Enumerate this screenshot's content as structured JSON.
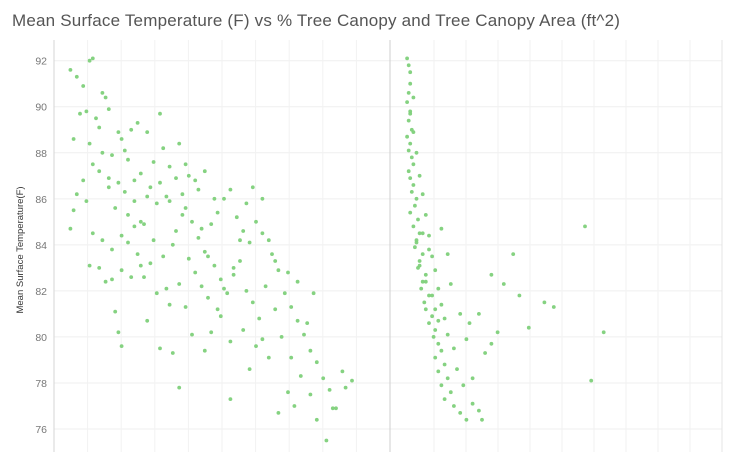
{
  "chart_data": {
    "type": "scatter",
    "title": "Mean Surface Temperature (F) vs % Tree Canopy and Tree Canopy Area (ft^2)",
    "ylabel": "Mean Surface Temperature(F)",
    "y_ticks": [
      "76",
      "78",
      "80",
      "82",
      "84",
      "86",
      "88",
      "90",
      "92"
    ],
    "ylim": [
      75.0,
      92.9
    ],
    "grid": true,
    "point_color": "#7ed07a",
    "panels": [
      {
        "name": "",
        "xlabel": "",
        "xlim": [
          0,
          100
        ],
        "points": [
          [
            2,
            91.6
          ],
          [
            4,
            91.3
          ],
          [
            6,
            90.9
          ],
          [
            8,
            92.0
          ],
          [
            9,
            92.1
          ],
          [
            12,
            90.6
          ],
          [
            13,
            90.4
          ],
          [
            7,
            89.8
          ],
          [
            10,
            89.5
          ],
          [
            11,
            89.1
          ],
          [
            14,
            89.9
          ],
          [
            5,
            89.7
          ],
          [
            3,
            88.6
          ],
          [
            8,
            88.4
          ],
          [
            12,
            88.0
          ],
          [
            15,
            87.9
          ],
          [
            18,
            88.6
          ],
          [
            21,
            89.0
          ],
          [
            23,
            89.3
          ],
          [
            26,
            88.9
          ],
          [
            30,
            89.7
          ],
          [
            9,
            87.5
          ],
          [
            11,
            87.2
          ],
          [
            14,
            86.9
          ],
          [
            17,
            86.7
          ],
          [
            6,
            86.8
          ],
          [
            4,
            86.2
          ],
          [
            7,
            85.9
          ],
          [
            3,
            85.5
          ],
          [
            2,
            84.7
          ],
          [
            9,
            84.5
          ],
          [
            12,
            84.2
          ],
          [
            15,
            83.8
          ],
          [
            11,
            83.0
          ],
          [
            8,
            83.1
          ],
          [
            13,
            82.4
          ],
          [
            16,
            81.1
          ],
          [
            17,
            80.2
          ],
          [
            18,
            79.6
          ],
          [
            20,
            85.3
          ],
          [
            22,
            84.8
          ],
          [
            19,
            86.3
          ],
          [
            24,
            87.1
          ],
          [
            27,
            86.5
          ],
          [
            29,
            85.8
          ],
          [
            31,
            88.2
          ],
          [
            33,
            87.4
          ],
          [
            35,
            86.9
          ],
          [
            37,
            86.2
          ],
          [
            28,
            84.2
          ],
          [
            31,
            83.5
          ],
          [
            34,
            84.0
          ],
          [
            25,
            82.6
          ],
          [
            29,
            81.9
          ],
          [
            33,
            81.4
          ],
          [
            26,
            80.7
          ],
          [
            30,
            79.5
          ],
          [
            34,
            79.3
          ],
          [
            36,
            77.8
          ],
          [
            38,
            85.6
          ],
          [
            40,
            85.0
          ],
          [
            42,
            84.3
          ],
          [
            44,
            83.7
          ],
          [
            46,
            84.9
          ],
          [
            48,
            85.4
          ],
          [
            50,
            86.0
          ],
          [
            52,
            86.4
          ],
          [
            54,
            85.2
          ],
          [
            56,
            84.6
          ],
          [
            58,
            84.1
          ],
          [
            60,
            85.0
          ],
          [
            62,
            84.5
          ],
          [
            41,
            82.8
          ],
          [
            43,
            82.2
          ],
          [
            45,
            81.7
          ],
          [
            47,
            83.1
          ],
          [
            49,
            82.5
          ],
          [
            51,
            81.9
          ],
          [
            53,
            82.7
          ],
          [
            55,
            83.3
          ],
          [
            57,
            82.0
          ],
          [
            59,
            81.5
          ],
          [
            61,
            80.8
          ],
          [
            63,
            82.2
          ],
          [
            65,
            83.6
          ],
          [
            67,
            82.9
          ],
          [
            69,
            81.9
          ],
          [
            71,
            81.3
          ],
          [
            73,
            80.7
          ],
          [
            75,
            80.1
          ],
          [
            77,
            79.4
          ],
          [
            79,
            78.9
          ],
          [
            81,
            78.2
          ],
          [
            83,
            77.7
          ],
          [
            85,
            76.9
          ],
          [
            72,
            77.0
          ],
          [
            70,
            77.6
          ],
          [
            67,
            76.7
          ],
          [
            64,
            79.1
          ],
          [
            60,
            79.6
          ],
          [
            56,
            80.3
          ],
          [
            52,
            79.8
          ],
          [
            49,
            80.9
          ],
          [
            46,
            80.2
          ],
          [
            44,
            79.4
          ],
          [
            38,
            81.3
          ],
          [
            36,
            82.3
          ],
          [
            39,
            83.4
          ],
          [
            42,
            86.4
          ],
          [
            44,
            87.2
          ],
          [
            47,
            86.0
          ],
          [
            36,
            88.4
          ],
          [
            38,
            87.5
          ],
          [
            32,
            86.1
          ],
          [
            22,
            85.9
          ],
          [
            25,
            84.9
          ],
          [
            23,
            83.6
          ],
          [
            21,
            82.6
          ],
          [
            18,
            84.4
          ],
          [
            16,
            85.6
          ],
          [
            14,
            86.5
          ],
          [
            27,
            83.2
          ],
          [
            32,
            82.1
          ],
          [
            40,
            80.1
          ],
          [
            52,
            77.3
          ],
          [
            58,
            78.6
          ],
          [
            62,
            79.9
          ],
          [
            66,
            81.2
          ],
          [
            68,
            80.0
          ],
          [
            71,
            79.1
          ],
          [
            74,
            78.3
          ],
          [
            77,
            77.5
          ],
          [
            79,
            76.4
          ],
          [
            82,
            75.5
          ],
          [
            84,
            76.9
          ],
          [
            88,
            77.8
          ],
          [
            90,
            78.1
          ],
          [
            87,
            78.5
          ],
          [
            76,
            80.6
          ],
          [
            78,
            81.9
          ],
          [
            73,
            82.4
          ],
          [
            70,
            82.8
          ],
          [
            66,
            83.3
          ],
          [
            64,
            84.2
          ],
          [
            62,
            86.0
          ],
          [
            59,
            86.5
          ],
          [
            57,
            85.8
          ],
          [
            55,
            84.2
          ],
          [
            53,
            83.0
          ],
          [
            50,
            82.1
          ],
          [
            48,
            81.2
          ],
          [
            45,
            83.5
          ],
          [
            43,
            84.7
          ],
          [
            41,
            86.8
          ],
          [
            39,
            87.0
          ],
          [
            37,
            85.3
          ],
          [
            35,
            84.6
          ],
          [
            33,
            85.9
          ],
          [
            30,
            86.7
          ],
          [
            28,
            87.6
          ],
          [
            26,
            86.1
          ],
          [
            24,
            85.0
          ],
          [
            22,
            86.8
          ],
          [
            20,
            87.7
          ],
          [
            19,
            88.1
          ],
          [
            17,
            88.9
          ],
          [
            24,
            83.1
          ],
          [
            20,
            84.1
          ],
          [
            18,
            82.9
          ],
          [
            15,
            82.5
          ]
        ]
      },
      {
        "name": "",
        "xlabel": "",
        "xlim": [
          0,
          100
        ],
        "points": [
          [
            1,
            92.1
          ],
          [
            1.5,
            91.8
          ],
          [
            2,
            91.5
          ],
          [
            2,
            91.0
          ],
          [
            1.5,
            90.6
          ],
          [
            1,
            90.2
          ],
          [
            2,
            89.8
          ],
          [
            1.5,
            89.4
          ],
          [
            2.5,
            89.0
          ],
          [
            1,
            88.7
          ],
          [
            2,
            88.4
          ],
          [
            1.5,
            88.1
          ],
          [
            2.5,
            87.8
          ],
          [
            3,
            87.5
          ],
          [
            1.5,
            87.2
          ],
          [
            2,
            86.9
          ],
          [
            3,
            86.6
          ],
          [
            2.5,
            86.3
          ],
          [
            4,
            86.0
          ],
          [
            3.5,
            85.7
          ],
          [
            2,
            85.4
          ],
          [
            4.5,
            85.1
          ],
          [
            3,
            84.8
          ],
          [
            5,
            84.5
          ],
          [
            4,
            84.2
          ],
          [
            3.5,
            83.9
          ],
          [
            6,
            83.6
          ],
          [
            5,
            83.3
          ],
          [
            4.5,
            83.0
          ],
          [
            7,
            82.7
          ],
          [
            6,
            82.4
          ],
          [
            5.5,
            82.1
          ],
          [
            8,
            81.8
          ],
          [
            6.5,
            81.5
          ],
          [
            7,
            81.2
          ],
          [
            9,
            80.9
          ],
          [
            8,
            80.6
          ],
          [
            10,
            80.3
          ],
          [
            9.5,
            80.0
          ],
          [
            11,
            79.7
          ],
          [
            12,
            79.4
          ],
          [
            10,
            79.1
          ],
          [
            13,
            78.8
          ],
          [
            11,
            78.5
          ],
          [
            14,
            78.2
          ],
          [
            12,
            77.9
          ],
          [
            15,
            77.6
          ],
          [
            13,
            77.3
          ],
          [
            16,
            77.0
          ],
          [
            18,
            76.7
          ],
          [
            20,
            76.4
          ],
          [
            8,
            84.4
          ],
          [
            9,
            83.5
          ],
          [
            10,
            82.9
          ],
          [
            11,
            82.1
          ],
          [
            12,
            81.4
          ],
          [
            13,
            80.8
          ],
          [
            7,
            85.3
          ],
          [
            6,
            86.2
          ],
          [
            5,
            87.0
          ],
          [
            4,
            88.0
          ],
          [
            3,
            88.9
          ],
          [
            2,
            89.7
          ],
          [
            3,
            90.4
          ],
          [
            14,
            80.1
          ],
          [
            16,
            79.5
          ],
          [
            17,
            78.6
          ],
          [
            19,
            77.9
          ],
          [
            22,
            77.1
          ],
          [
            24,
            76.8
          ],
          [
            25,
            76.4
          ],
          [
            22,
            78.2
          ],
          [
            26,
            79.3
          ],
          [
            28,
            79.7
          ],
          [
            30,
            80.2
          ],
          [
            24,
            81.0
          ],
          [
            28,
            82.7
          ],
          [
            32,
            82.3
          ],
          [
            35,
            83.6
          ],
          [
            40,
            80.4
          ],
          [
            45,
            81.5
          ],
          [
            48,
            81.3
          ],
          [
            37,
            81.8
          ],
          [
            58,
            84.8
          ],
          [
            60,
            78.1
          ],
          [
            64,
            80.2
          ],
          [
            6,
            84.5
          ],
          [
            8,
            83.8
          ],
          [
            12,
            84.7
          ],
          [
            14,
            83.6
          ],
          [
            15,
            82.3
          ],
          [
            18,
            81.0
          ],
          [
            20,
            79.9
          ],
          [
            21,
            80.6
          ],
          [
            9,
            81.8
          ],
          [
            10,
            81.2
          ],
          [
            11,
            80.7
          ],
          [
            7,
            82.4
          ],
          [
            5,
            83.1
          ],
          [
            4,
            84.1
          ]
        ]
      }
    ]
  }
}
